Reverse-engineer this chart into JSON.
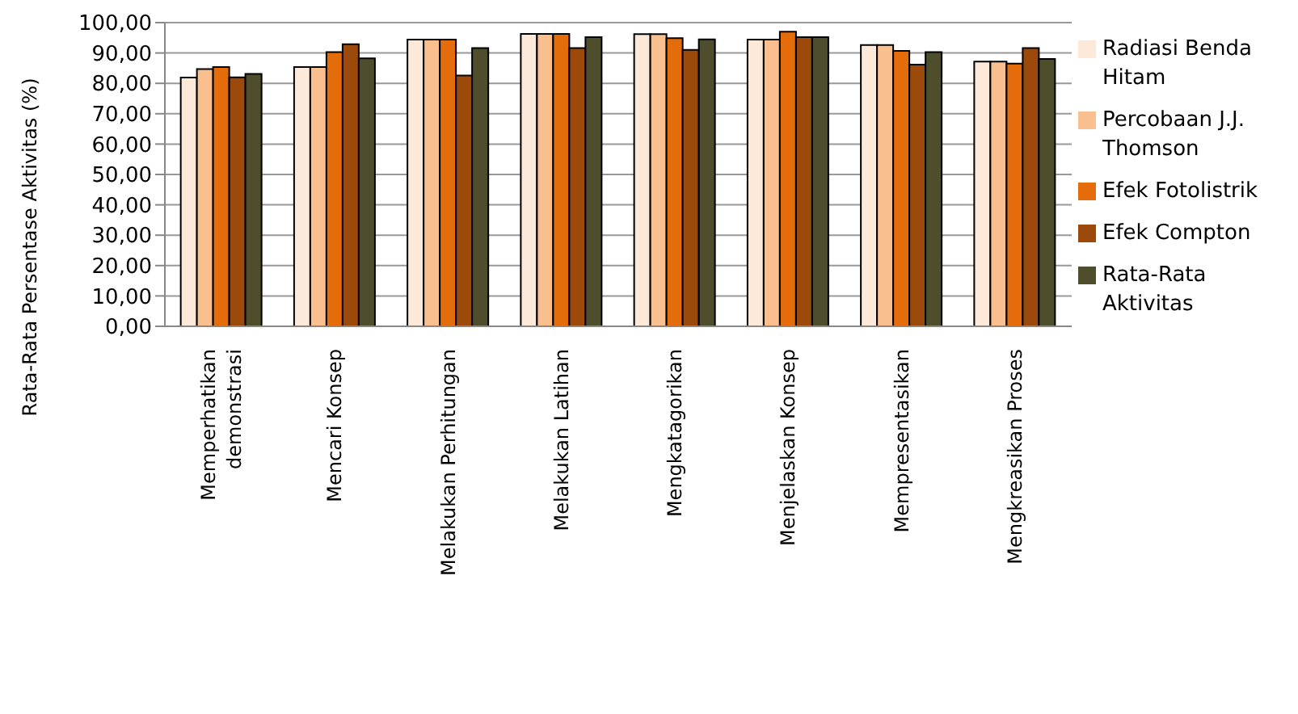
{
  "chart_data": {
    "type": "bar",
    "ylabel": "Rata-Rata Persentase Aktivitas (%)",
    "categories": [
      "Memperhatikan demonstrasi",
      "Mencari Konsep",
      "Melakukan Perhitungan",
      "Melakukan Latihan",
      "Mengkatagorikan",
      "Menjelaskan Konsep",
      "Mempresentasikan",
      "Mengkreasikan Proses"
    ],
    "series": [
      {
        "name": "Radiasi Benda Hitam",
        "color": "#fde9d9",
        "values": [
          81.9,
          85.4,
          94.4,
          96.3,
          96.2,
          94.4,
          92.6,
          87.2
        ]
      },
      {
        "name": "Percobaan J.J. Thomson",
        "color": "#fabf8f",
        "values": [
          84.7,
          85.4,
          94.4,
          96.3,
          96.2,
          94.4,
          92.6,
          87.2
        ]
      },
      {
        "name": "Efek Fotolistrik",
        "color": "#e46c0a",
        "values": [
          85.4,
          90.3,
          94.4,
          96.3,
          94.9,
          97.0,
          90.7,
          86.5
        ]
      },
      {
        "name": "Efek Compton",
        "color": "#9c4a0c",
        "values": [
          82.0,
          92.9,
          82.6,
          91.6,
          91.0,
          95.2,
          86.2,
          91.6
        ]
      },
      {
        "name": "Rata-Rata Aktivitas",
        "color": "#4f4e2c",
        "values": [
          83.1,
          88.2,
          91.6,
          95.2,
          94.5,
          95.2,
          90.3,
          88.0
        ]
      }
    ],
    "ylim": [
      0,
      100
    ],
    "yticks": [
      {
        "value": 0,
        "label": "0,00"
      },
      {
        "value": 10,
        "label": "10,00"
      },
      {
        "value": 20,
        "label": "20,00"
      },
      {
        "value": 30,
        "label": "30,00"
      },
      {
        "value": 40,
        "label": "40,00"
      },
      {
        "value": 50,
        "label": "50,00"
      },
      {
        "value": 60,
        "label": "60,00"
      },
      {
        "value": 70,
        "label": "70,00"
      },
      {
        "value": 80,
        "label": "80,00"
      },
      {
        "value": 90,
        "label": "90,00"
      },
      {
        "value": 100,
        "label": "100,00"
      }
    ],
    "grid": "y",
    "legend": "right"
  }
}
